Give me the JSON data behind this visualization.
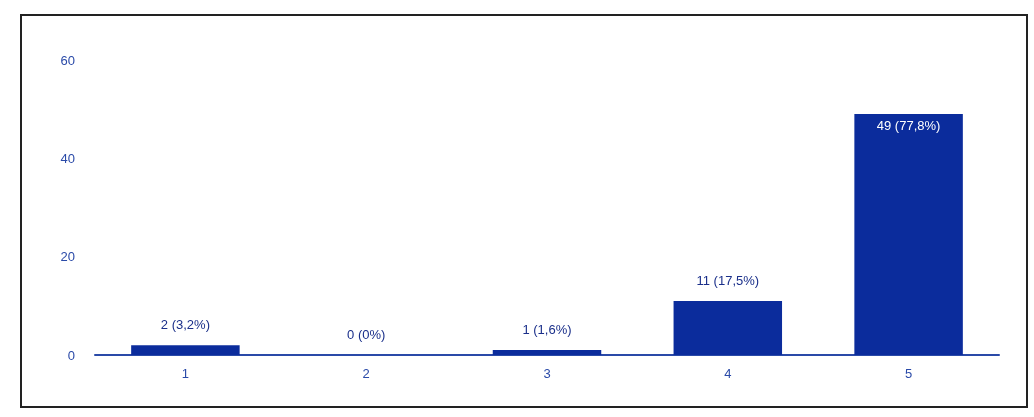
{
  "chart_data": {
    "type": "bar",
    "categories": [
      "1",
      "2",
      "3",
      "4",
      "5"
    ],
    "values": [
      2,
      0,
      1,
      11,
      49
    ],
    "value_labels": [
      "2 (3,2%)",
      "0 (0%)",
      "1 (1,6%)",
      "11 (17,5%)",
      "49 (77,8%)"
    ],
    "color": "#0b2c9c",
    "ylim": [
      0,
      60
    ],
    "yticks": [
      0,
      20,
      40,
      60
    ],
    "grid": false
  }
}
